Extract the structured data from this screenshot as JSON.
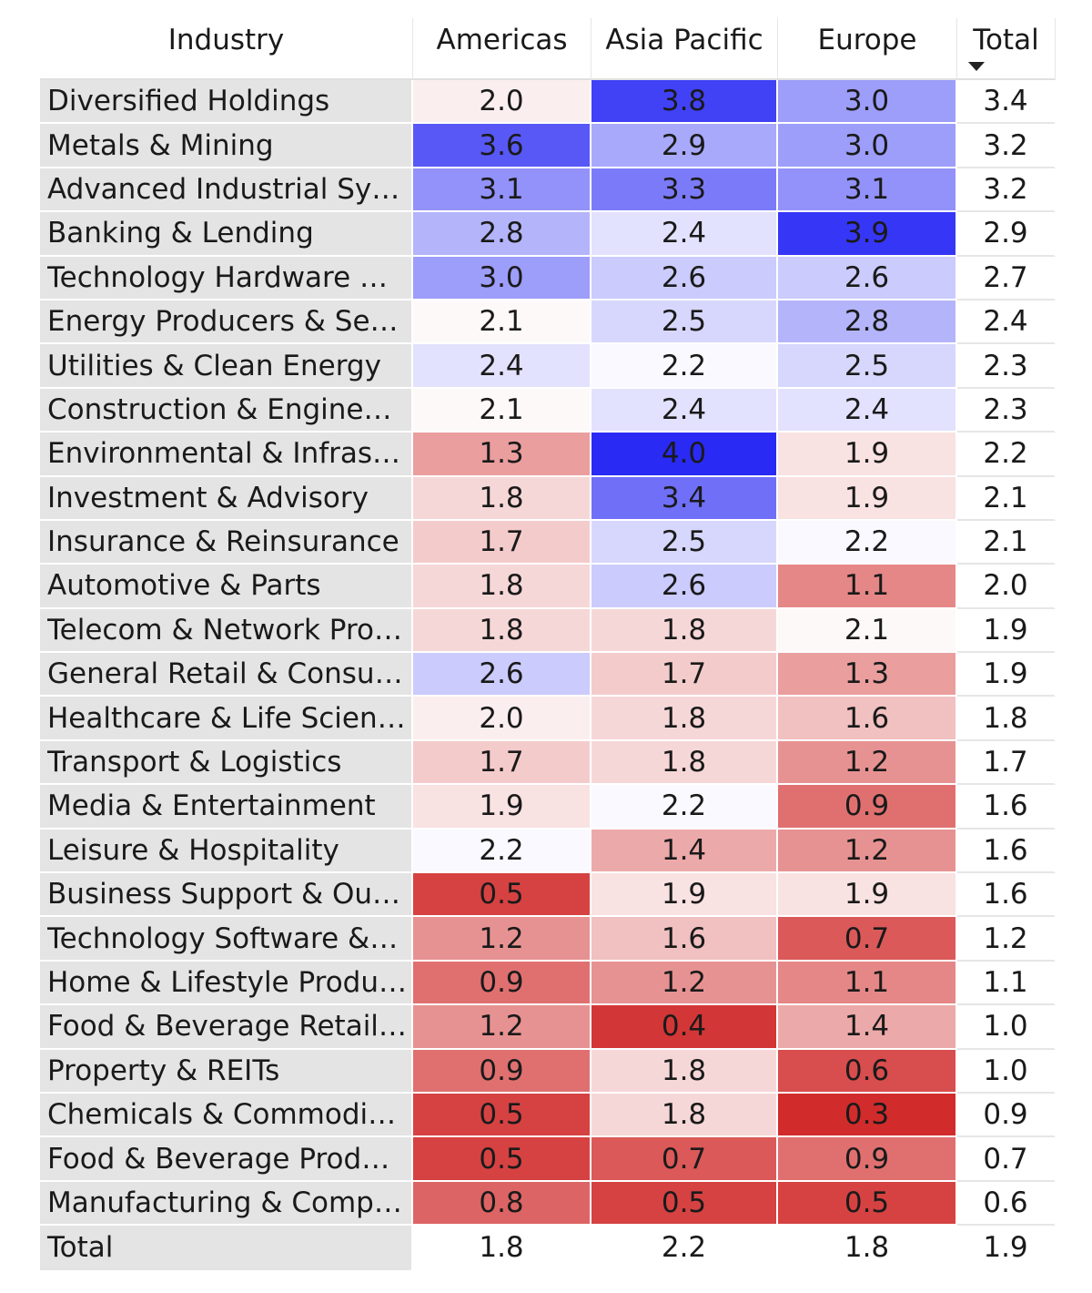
{
  "chart_data": {
    "type": "heatmap",
    "title": "",
    "columns": [
      "Industry",
      "Americas",
      "Asia Pacific",
      "Europe",
      "Total"
    ],
    "sorted_column": "Total",
    "sort_direction": "descending",
    "color_scale": {
      "low": "#d12b2b",
      "mid": "#ffffff",
      "high": "#2a2af5",
      "min": 0.3,
      "mid_value": 2.15,
      "max": 4.0
    },
    "rows": [
      {
        "industry": "Diversified Holdings",
        "americas": 2.0,
        "asia_pacific": 3.8,
        "europe": 3.0,
        "total": 3.4
      },
      {
        "industry": "Metals & Mining",
        "americas": 3.6,
        "asia_pacific": 2.9,
        "europe": 3.0,
        "total": 3.2
      },
      {
        "industry": "Advanced Industrial Systems",
        "americas": 3.1,
        "asia_pacific": 3.3,
        "europe": 3.1,
        "total": 3.2
      },
      {
        "industry": "Banking & Lending",
        "americas": 2.8,
        "asia_pacific": 2.4,
        "europe": 3.9,
        "total": 2.9
      },
      {
        "industry": "Technology Hardware & E...",
        "americas": 3.0,
        "asia_pacific": 2.6,
        "europe": 2.6,
        "total": 2.7
      },
      {
        "industry": "Energy Producers & Servic...",
        "americas": 2.1,
        "asia_pacific": 2.5,
        "europe": 2.8,
        "total": 2.4
      },
      {
        "industry": "Utilities & Clean Energy",
        "americas": 2.4,
        "asia_pacific": 2.2,
        "europe": 2.5,
        "total": 2.3
      },
      {
        "industry": "Construction & Engineering",
        "americas": 2.1,
        "asia_pacific": 2.4,
        "europe": 2.4,
        "total": 2.3
      },
      {
        "industry": "Environmental & Infrastruc...",
        "americas": 1.3,
        "asia_pacific": 4.0,
        "europe": 1.9,
        "total": 2.2
      },
      {
        "industry": "Investment & Advisory",
        "americas": 1.8,
        "asia_pacific": 3.4,
        "europe": 1.9,
        "total": 2.1
      },
      {
        "industry": "Insurance & Reinsurance",
        "americas": 1.7,
        "asia_pacific": 2.5,
        "europe": 2.2,
        "total": 2.1
      },
      {
        "industry": "Automotive & Parts",
        "americas": 1.8,
        "asia_pacific": 2.6,
        "europe": 1.1,
        "total": 2.0
      },
      {
        "industry": "Telecom & Network Provid...",
        "americas": 1.8,
        "asia_pacific": 1.8,
        "europe": 2.1,
        "total": 1.9
      },
      {
        "industry": "General Retail & Consume...",
        "americas": 2.6,
        "asia_pacific": 1.7,
        "europe": 1.3,
        "total": 1.9
      },
      {
        "industry": "Healthcare & Life Sciences",
        "americas": 2.0,
        "asia_pacific": 1.8,
        "europe": 1.6,
        "total": 1.8
      },
      {
        "industry": "Transport & Logistics",
        "americas": 1.7,
        "asia_pacific": 1.8,
        "europe": 1.2,
        "total": 1.7
      },
      {
        "industry": "Media & Entertainment",
        "americas": 1.9,
        "asia_pacific": 2.2,
        "europe": 0.9,
        "total": 1.6
      },
      {
        "industry": "Leisure & Hospitality",
        "americas": 2.2,
        "asia_pacific": 1.4,
        "europe": 1.2,
        "total": 1.6
      },
      {
        "industry": "Business Support & Outso...",
        "americas": 0.5,
        "asia_pacific": 1.9,
        "europe": 1.9,
        "total": 1.6
      },
      {
        "industry": "Technology Software & Se...",
        "americas": 1.2,
        "asia_pacific": 1.6,
        "europe": 0.7,
        "total": 1.2
      },
      {
        "industry": "Home & Lifestyle Products",
        "americas": 0.9,
        "asia_pacific": 1.2,
        "europe": 1.1,
        "total": 1.1
      },
      {
        "industry": "Food & Beverage Retail & ...",
        "americas": 1.2,
        "asia_pacific": 0.4,
        "europe": 1.4,
        "total": 1.0
      },
      {
        "industry": "Property & REITs",
        "americas": 0.9,
        "asia_pacific": 1.8,
        "europe": 0.6,
        "total": 1.0
      },
      {
        "industry": "Chemicals & Commodities",
        "americas": 0.5,
        "asia_pacific": 1.8,
        "europe": 0.3,
        "total": 0.9
      },
      {
        "industry": "Food & Beverage Producers",
        "americas": 0.5,
        "asia_pacific": 0.7,
        "europe": 0.9,
        "total": 0.7
      },
      {
        "industry": "Manufacturing & Compon...",
        "americas": 0.8,
        "asia_pacific": 0.5,
        "europe": 0.5,
        "total": 0.6
      }
    ],
    "totals": {
      "label": "Total",
      "americas": 1.8,
      "asia_pacific": 2.2,
      "europe": 1.8,
      "total": 1.9
    }
  }
}
